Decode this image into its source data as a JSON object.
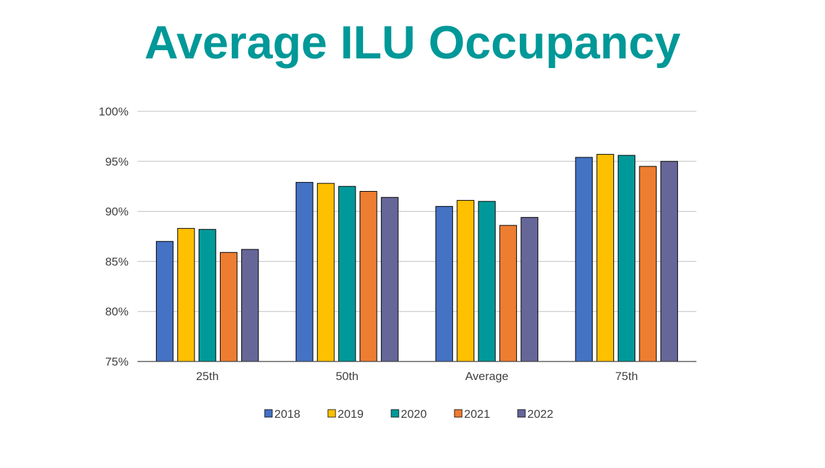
{
  "chart_data": {
    "type": "bar",
    "title": "Average ILU Occupancy",
    "xlabel": "",
    "ylabel": "",
    "categories": [
      "25th",
      "50th",
      "Average",
      "75th"
    ],
    "series": [
      {
        "name": "2018",
        "color": "#4472C4",
        "values": [
          87.0,
          92.9,
          90.5,
          95.4
        ]
      },
      {
        "name": "2019",
        "color": "#FFC000",
        "values": [
          88.3,
          92.8,
          91.1,
          95.7
        ]
      },
      {
        "name": "2020",
        "color": "#009999",
        "values": [
          88.2,
          92.5,
          91.0,
          95.6
        ]
      },
      {
        "name": "2021",
        "color": "#ED7D31",
        "values": [
          85.9,
          92.0,
          88.6,
          94.5
        ]
      },
      {
        "name": "2022",
        "color": "#666699",
        "values": [
          86.2,
          91.4,
          89.4,
          95.0
        ]
      }
    ],
    "ylim": [
      75,
      100
    ],
    "yticks": [
      75,
      80,
      85,
      90,
      95,
      100
    ],
    "ytick_labels": [
      "75%",
      "80%",
      "85%",
      "90%",
      "95%",
      "100%"
    ],
    "grid": true,
    "legend_position": "bottom"
  },
  "colors": {
    "title": "#009898",
    "grid": "#BFBFBF",
    "axis": "#404040",
    "text": "#404040"
  }
}
